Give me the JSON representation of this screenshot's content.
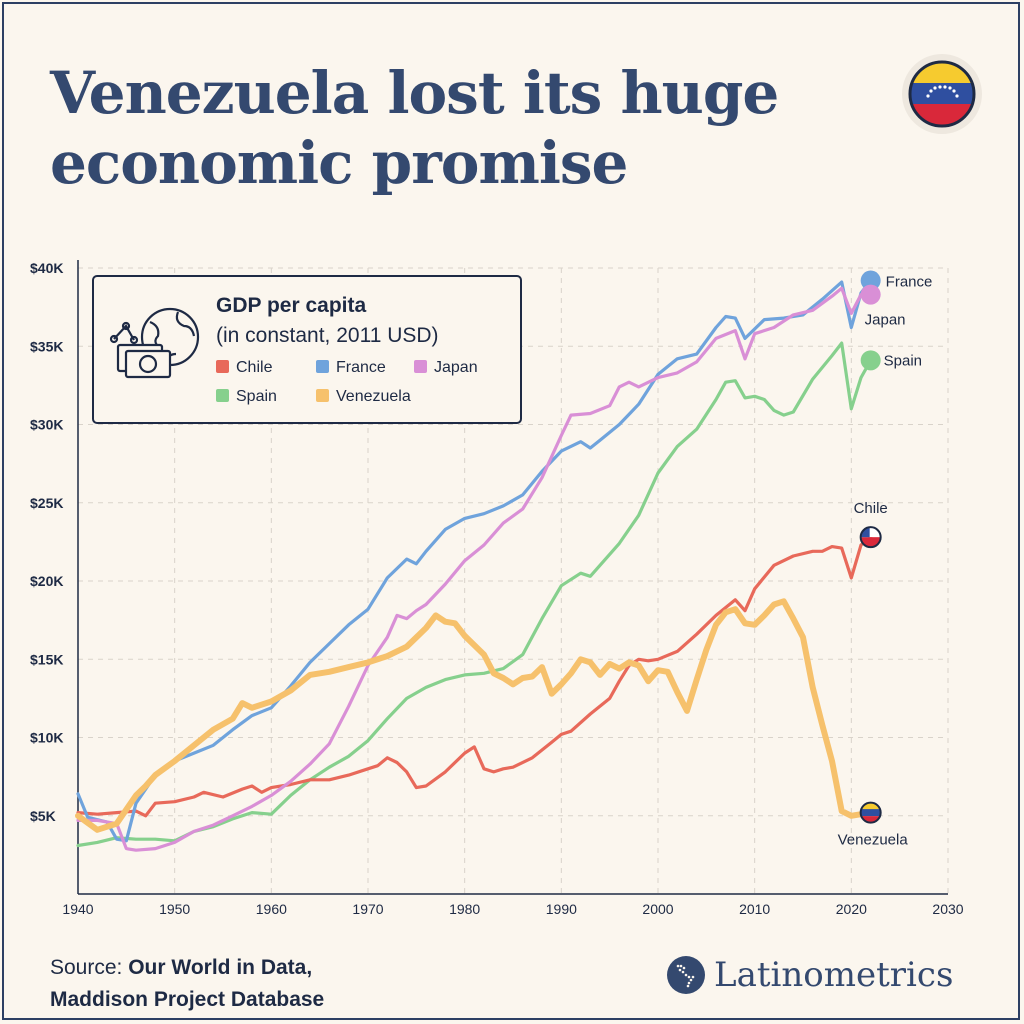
{
  "header": {
    "title_line1": "Venezuela lost its huge",
    "title_line2": "economic promise",
    "flag_icon": "venezuela-flag-icon"
  },
  "footer": {
    "source_label": "Source:",
    "source_line1": "Our World in Data,",
    "source_line2": "Maddison Project Database",
    "brand_name": "Latinometrics",
    "brand_icon": "americas-map-icon"
  },
  "legend": {
    "title": "GDP per capita",
    "subtitle": "(in constant, 2011 USD)",
    "icon": "globe-money-icon"
  },
  "chart_data": {
    "type": "line",
    "title": "GDP per capita",
    "subtitle": "(in constant, 2011 USD)",
    "xlabel": "",
    "ylabel": "",
    "xlim": [
      1940,
      2030
    ],
    "ylim": [
      0,
      40000
    ],
    "xticks": [
      1940,
      1950,
      1960,
      1970,
      1980,
      1990,
      2000,
      2010,
      2020,
      2030
    ],
    "xtick_labels": [
      "1940",
      "1950",
      "1960",
      "1970",
      "1980",
      "1990",
      "2000",
      "2010",
      "2020",
      "2030"
    ],
    "yticks": [
      5000,
      10000,
      15000,
      20000,
      25000,
      30000,
      35000,
      40000
    ],
    "ytick_labels": [
      "$5K",
      "$10K",
      "$15K",
      "$20K",
      "$25K",
      "$30K",
      "$35K",
      "$40K"
    ],
    "grid": true,
    "legend_position": "top-left",
    "series": [
      {
        "name": "Chile",
        "color": "#e8695a",
        "end_label": "Chile",
        "end_marker": "chile-flag",
        "x": [
          1940,
          1942,
          1944,
          1946,
          1947,
          1948,
          1950,
          1952,
          1953,
          1955,
          1957,
          1958,
          1959,
          1960,
          1962,
          1964,
          1966,
          1968,
          1970,
          1971,
          1972,
          1973,
          1974,
          1975,
          1976,
          1978,
          1980,
          1981,
          1982,
          1983,
          1984,
          1985,
          1987,
          1989,
          1990,
          1991,
          1993,
          1995,
          1996,
          1997,
          1998,
          1999,
          2000,
          2002,
          2004,
          2006,
          2008,
          2009,
          2010,
          2012,
          2014,
          2016,
          2017,
          2018,
          2019,
          2020,
          2021,
          2022
        ],
        "y": [
          5200,
          5100,
          5200,
          5300,
          5000,
          5800,
          5900,
          6200,
          6500,
          6200,
          6700,
          6900,
          6500,
          6800,
          7000,
          7300,
          7300,
          7600,
          8000,
          8200,
          8700,
          8400,
          7800,
          6800,
          6900,
          7800,
          9000,
          9400,
          8000,
          7800,
          8000,
          8100,
          8700,
          9700,
          10200,
          10400,
          11500,
          12500,
          13600,
          14600,
          15000,
          14900,
          15000,
          15500,
          16600,
          17800,
          18800,
          18100,
          19500,
          21000,
          21600,
          21900,
          21900,
          22200,
          22100,
          20200,
          22300,
          22800
        ]
      },
      {
        "name": "France",
        "color": "#6fa3dc",
        "end_label": "France",
        "end_marker": "dot",
        "x": [
          1940,
          1941,
          1943,
          1944,
          1945,
          1946,
          1948,
          1950,
          1952,
          1954,
          1956,
          1958,
          1960,
          1962,
          1964,
          1966,
          1968,
          1970,
          1972,
          1974,
          1975,
          1976,
          1978,
          1980,
          1982,
          1984,
          1986,
          1988,
          1990,
          1992,
          1993,
          1994,
          1996,
          1998,
          2000,
          2002,
          2004,
          2006,
          2007,
          2008,
          2009,
          2011,
          2013,
          2015,
          2017,
          2019,
          2020,
          2021,
          2022
        ],
        "y": [
          6400,
          4900,
          4600,
          3500,
          3400,
          5800,
          7600,
          8500,
          9000,
          9500,
          10500,
          11400,
          11900,
          13300,
          14800,
          16000,
          17200,
          18200,
          20200,
          21400,
          21100,
          21900,
          23300,
          24000,
          24300,
          24800,
          25500,
          27000,
          28300,
          28900,
          28500,
          29000,
          30000,
          31300,
          33200,
          34200,
          34500,
          36200,
          36900,
          36800,
          35500,
          36700,
          36800,
          37000,
          38000,
          39100,
          36200,
          38400,
          39200
        ]
      },
      {
        "name": "Japan",
        "color": "#d98fd6",
        "end_label": "Japan",
        "end_marker": "dot",
        "x": [
          1940,
          1942,
          1944,
          1945,
          1946,
          1948,
          1950,
          1952,
          1954,
          1956,
          1958,
          1960,
          1962,
          1964,
          1966,
          1968,
          1970,
          1972,
          1973,
          1974,
          1975,
          1976,
          1978,
          1980,
          1982,
          1984,
          1986,
          1988,
          1990,
          1991,
          1993,
          1995,
          1996,
          1997,
          1998,
          2000,
          2002,
          2004,
          2006,
          2008,
          2009,
          2010,
          2012,
          2014,
          2016,
          2018,
          2019,
          2020,
          2021,
          2022
        ],
        "y": [
          4700,
          4700,
          4500,
          2900,
          2800,
          2900,
          3300,
          4000,
          4400,
          5000,
          5600,
          6300,
          7200,
          8300,
          9600,
          12000,
          14600,
          16400,
          17800,
          17600,
          18100,
          18500,
          19800,
          21300,
          22300,
          23700,
          24600,
          26600,
          29300,
          30600,
          30700,
          31200,
          32400,
          32700,
          32400,
          33000,
          33300,
          34000,
          35500,
          36000,
          34200,
          35800,
          36200,
          37000,
          37300,
          38200,
          38700,
          37100,
          38300,
          38300
        ]
      },
      {
        "name": "Spain",
        "color": "#86d08d",
        "end_label": "Spain",
        "end_marker": "dot",
        "x": [
          1940,
          1942,
          1944,
          1946,
          1948,
          1950,
          1952,
          1954,
          1956,
          1958,
          1960,
          1962,
          1964,
          1966,
          1968,
          1970,
          1972,
          1974,
          1976,
          1978,
          1980,
          1982,
          1984,
          1986,
          1988,
          1990,
          1992,
          1993,
          1994,
          1996,
          1998,
          2000,
          2002,
          2004,
          2006,
          2007,
          2008,
          2009,
          2010,
          2011,
          2012,
          2013,
          2014,
          2016,
          2018,
          2019,
          2020,
          2021,
          2022
        ],
        "y": [
          3100,
          3300,
          3600,
          3500,
          3500,
          3400,
          4000,
          4300,
          4800,
          5200,
          5100,
          6300,
          7300,
          8100,
          8800,
          9800,
          11200,
          12500,
          13200,
          13700,
          14000,
          14100,
          14400,
          15300,
          17600,
          19700,
          20500,
          20300,
          21000,
          22400,
          24200,
          26900,
          28600,
          29700,
          31600,
          32700,
          32800,
          31700,
          31800,
          31600,
          30900,
          30600,
          30800,
          32900,
          34400,
          35200,
          31000,
          33000,
          34100
        ]
      },
      {
        "name": "Venezuela",
        "color": "#f6c16c",
        "end_label": "Venezuela",
        "end_marker": "venezuela-flag",
        "x": [
          1940,
          1942,
          1944,
          1946,
          1947,
          1948,
          1950,
          1952,
          1954,
          1956,
          1957,
          1958,
          1960,
          1962,
          1964,
          1966,
          1968,
          1970,
          1972,
          1974,
          1976,
          1977,
          1978,
          1979,
          1980,
          1982,
          1983,
          1984,
          1985,
          1986,
          1987,
          1988,
          1989,
          1990,
          1991,
          1992,
          1993,
          1994,
          1995,
          1996,
          1997,
          1998,
          1999,
          2000,
          2001,
          2002,
          2003,
          2004,
          2005,
          2006,
          2007,
          2008,
          2009,
          2010,
          2011,
          2012,
          2013,
          2014,
          2015,
          2016,
          2017,
          2018,
          2019,
          2020,
          2021,
          2022
        ],
        "y": [
          5000,
          4100,
          4500,
          6300,
          6900,
          7600,
          8500,
          9500,
          10500,
          11200,
          12200,
          11900,
          12300,
          13000,
          14000,
          14200,
          14500,
          14800,
          15200,
          15800,
          17000,
          17800,
          17400,
          17300,
          16500,
          15300,
          14100,
          13800,
          13400,
          13800,
          13900,
          14500,
          12800,
          13400,
          14100,
          15000,
          14800,
          14000,
          14700,
          14400,
          14800,
          14600,
          13600,
          14300,
          14200,
          12900,
          11700,
          13700,
          15600,
          17200,
          18000,
          18200,
          17300,
          17200,
          17800,
          18500,
          18700,
          17600,
          16400,
          13200,
          10800,
          8500,
          5300,
          5000,
          5100,
          5200
        ]
      }
    ]
  }
}
